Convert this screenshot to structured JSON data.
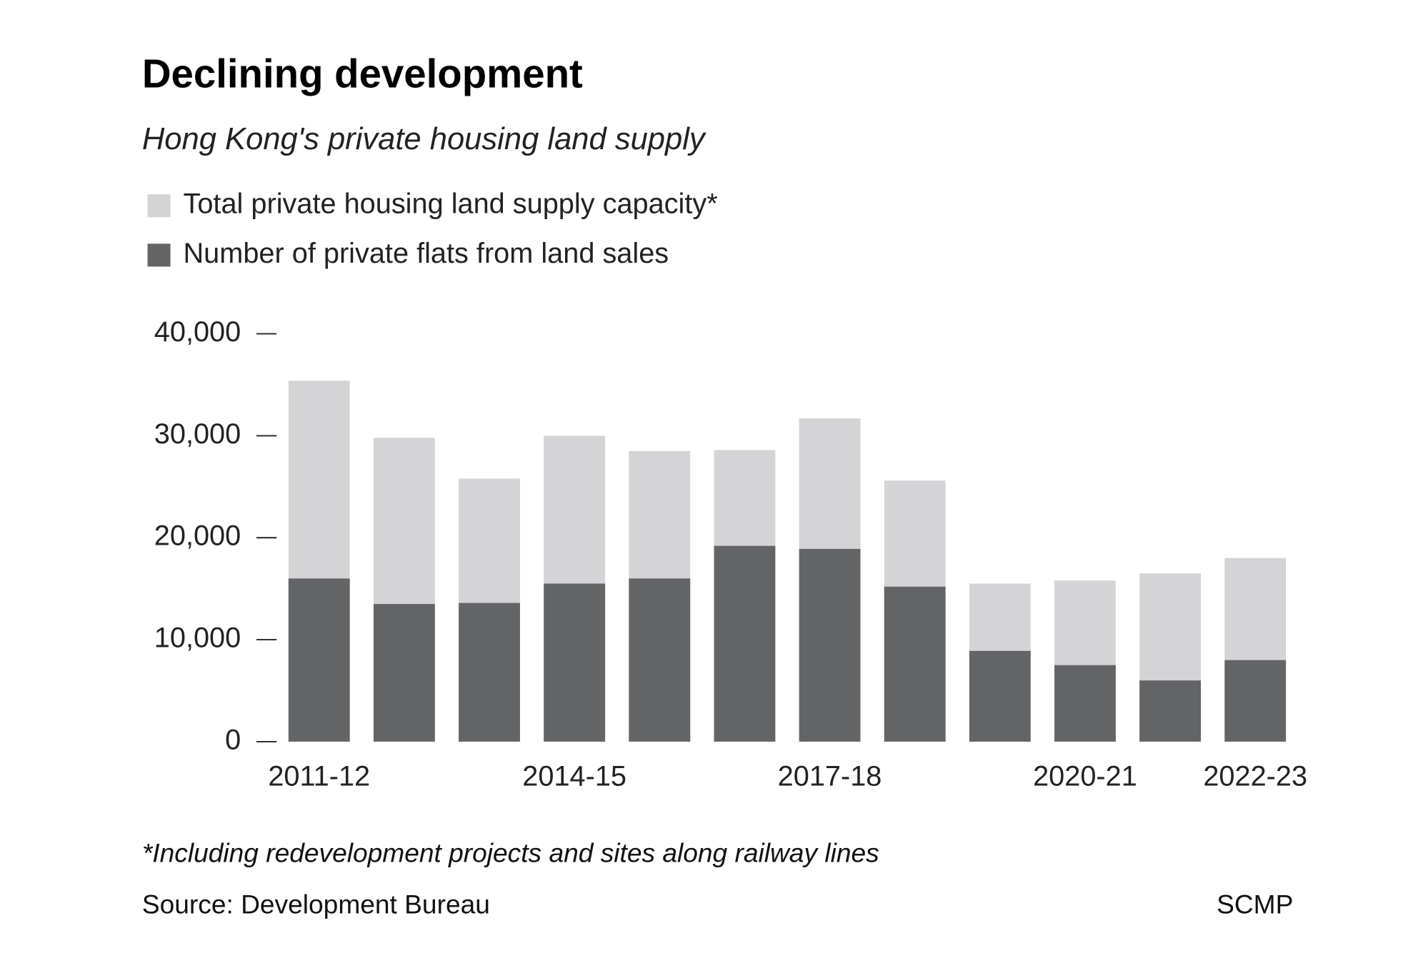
{
  "chart_data": {
    "type": "bar",
    "title": "Declining development",
    "subtitle": "Hong Kong's private housing land supply",
    "categories": [
      "2011-12",
      null,
      null,
      "2014-15",
      null,
      null,
      "2017-18",
      null,
      null,
      "2020-21",
      null,
      "2022-23"
    ],
    "series": [
      {
        "name": "Total private housing land supply capacity*",
        "color": "#d4d4d6",
        "values": [
          35400,
          29800,
          25800,
          30000,
          28500,
          28600,
          31700,
          25600,
          15500,
          15800,
          16500,
          18000
        ]
      },
      {
        "name": "Number of private flats from land sales",
        "color": "#636466",
        "values": [
          16000,
          13500,
          13600,
          15500,
          16000,
          19200,
          18900,
          15200,
          8900,
          7500,
          6000,
          8000
        ]
      }
    ],
    "ylim": [
      0,
      40000
    ],
    "yticks": [
      0,
      {
        "value": 10000,
        "label": "10,000"
      },
      {
        "value": 20000,
        "label": "20,000"
      },
      {
        "value": 30000,
        "label": "30,000"
      },
      {
        "value": 40000,
        "label": "40,000"
      }
    ],
    "footnote": "*Including redevelopment projects and sites along railway lines",
    "source": "Source: Development Bureau",
    "credit": "SCMP"
  }
}
